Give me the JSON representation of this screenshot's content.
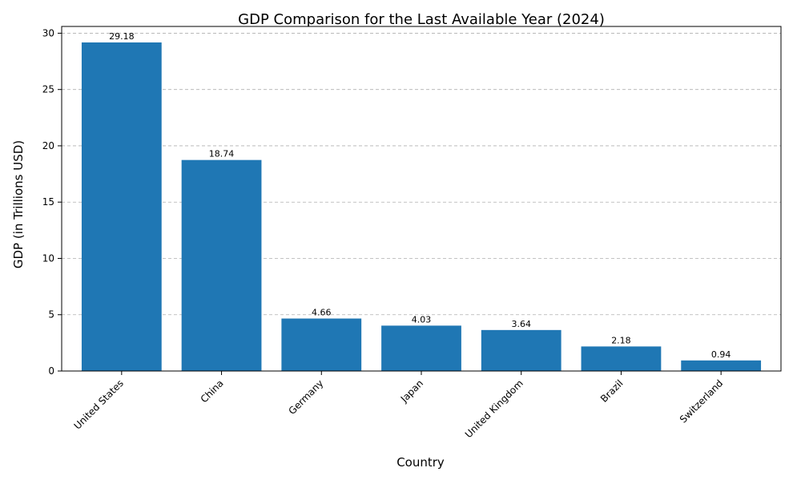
{
  "chart_data": {
    "type": "bar",
    "title": "GDP Comparison for the Last Available Year (2024)",
    "xlabel": "Country",
    "ylabel": "GDP (in Trillions USD)",
    "categories": [
      "United States",
      "China",
      "Germany",
      "Japan",
      "United Kingdom",
      "Brazil",
      "Switzerland"
    ],
    "values": [
      29.18,
      18.74,
      4.66,
      4.03,
      3.64,
      2.18,
      0.94
    ],
    "data_labels": [
      "29.18",
      "18.74",
      "4.66",
      "4.03",
      "3.64",
      "2.18",
      "0.94"
    ],
    "ylim": [
      0,
      30.6
    ],
    "yticks": [
      0,
      5,
      10,
      15,
      20,
      25,
      30
    ],
    "ytick_labels": [
      "0",
      "5",
      "10",
      "15",
      "20",
      "25",
      "30"
    ],
    "bar_color": "#1f77b4",
    "grid": "y-dashed",
    "legend": "none"
  }
}
